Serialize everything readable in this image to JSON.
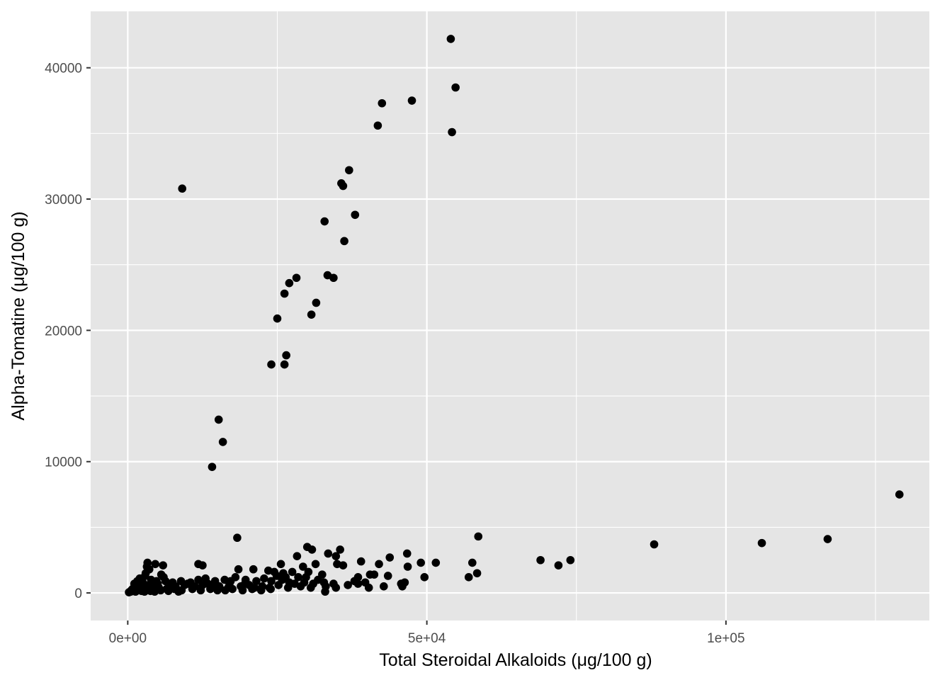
{
  "chart_data": {
    "type": "scatter",
    "title": "",
    "xlabel": "Total Steroidal Alkaloids (μg/100 g)",
    "ylabel": "Alpha-Tomatine (μg/100 g)",
    "xlim": [
      -6200,
      134000
    ],
    "ylim": [
      -2100,
      44300
    ],
    "x_ticks": [
      0,
      50000,
      100000
    ],
    "x_tick_labels": [
      "0e+00",
      "5e+04",
      "1e+05"
    ],
    "y_ticks": [
      0,
      10000,
      20000,
      30000,
      40000
    ],
    "y_tick_labels": [
      "0",
      "10000",
      "20000",
      "30000",
      "40000"
    ],
    "grid": true,
    "colors": {
      "panel": "#e5e5e5",
      "grid": "#ffffff",
      "point": "#000000"
    },
    "series": [
      {
        "name": "",
        "points": [
          [
            54000,
            42200
          ],
          [
            54800,
            38500
          ],
          [
            47500,
            37500
          ],
          [
            42500,
            37300
          ],
          [
            41800,
            35600
          ],
          [
            54200,
            35100
          ],
          [
            37000,
            32200
          ],
          [
            35700,
            31200
          ],
          [
            36000,
            31000
          ],
          [
            9100,
            30800
          ],
          [
            38000,
            28800
          ],
          [
            32900,
            28300
          ],
          [
            36200,
            26800
          ],
          [
            33400,
            24200
          ],
          [
            34400,
            24000
          ],
          [
            28200,
            24000
          ],
          [
            27000,
            23600
          ],
          [
            26200,
            22800
          ],
          [
            31500,
            22100
          ],
          [
            30700,
            21200
          ],
          [
            25000,
            20900
          ],
          [
            26500,
            18100
          ],
          [
            24000,
            17400
          ],
          [
            26200,
            17400
          ],
          [
            15200,
            13200
          ],
          [
            15900,
            11500
          ],
          [
            14100,
            9600
          ],
          [
            129000,
            7500
          ],
          [
            18300,
            4200
          ],
          [
            58600,
            4300
          ],
          [
            117000,
            4100
          ],
          [
            106000,
            3800
          ],
          [
            88000,
            3700
          ],
          [
            30000,
            3500
          ],
          [
            30800,
            3300
          ],
          [
            35500,
            3300
          ],
          [
            33500,
            3000
          ],
          [
            46700,
            3000
          ],
          [
            34800,
            2800
          ],
          [
            28300,
            2800
          ],
          [
            43800,
            2700
          ],
          [
            69000,
            2500
          ],
          [
            74000,
            2500
          ],
          [
            72000,
            2100
          ],
          [
            51500,
            2300
          ],
          [
            57600,
            2300
          ],
          [
            49000,
            2300
          ],
          [
            39000,
            2400
          ],
          [
            11800,
            2200
          ],
          [
            12500,
            2100
          ],
          [
            3300,
            2300
          ],
          [
            4600,
            2200
          ],
          [
            5900,
            2100
          ],
          [
            25600,
            2200
          ],
          [
            29300,
            2000
          ],
          [
            31400,
            2200
          ],
          [
            35000,
            2200
          ],
          [
            36000,
            2100
          ],
          [
            42000,
            2200
          ],
          [
            46800,
            2000
          ],
          [
            18500,
            1800
          ],
          [
            21000,
            1800
          ],
          [
            23500,
            1700
          ],
          [
            24500,
            1600
          ],
          [
            26000,
            1500
          ],
          [
            27500,
            1600
          ],
          [
            30200,
            1600
          ],
          [
            32500,
            1400
          ],
          [
            38500,
            1200
          ],
          [
            40500,
            1400
          ],
          [
            43500,
            1300
          ],
          [
            49600,
            1200
          ],
          [
            58400,
            1500
          ],
          [
            57000,
            1200
          ],
          [
            41200,
            1400
          ],
          [
            3000,
            1500
          ],
          [
            3600,
            1800
          ],
          [
            3200,
            2000
          ],
          [
            5600,
            1400
          ],
          [
            6000,
            1200
          ],
          [
            8900,
            900
          ],
          [
            10500,
            800
          ],
          [
            11800,
            1000
          ],
          [
            13000,
            1100
          ],
          [
            14600,
            900
          ],
          [
            16200,
            1000
          ],
          [
            17200,
            900
          ],
          [
            18000,
            1200
          ],
          [
            19700,
            1000
          ],
          [
            21500,
            900
          ],
          [
            22800,
            1100
          ],
          [
            24000,
            900
          ],
          [
            25800,
            1000
          ],
          [
            27000,
            800
          ],
          [
            28500,
            1200
          ],
          [
            29500,
            800
          ],
          [
            31000,
            700
          ],
          [
            32800,
            800
          ],
          [
            34400,
            700
          ],
          [
            37900,
            900
          ],
          [
            38500,
            700
          ],
          [
            39700,
            800
          ],
          [
            40300,
            400
          ],
          [
            42800,
            500
          ],
          [
            45900,
            500
          ],
          [
            46300,
            800
          ],
          [
            45700,
            700
          ],
          [
            34800,
            400
          ],
          [
            33000,
            100
          ],
          [
            2000,
            1100
          ],
          [
            2500,
            800
          ],
          [
            4000,
            600
          ],
          [
            4800,
            900
          ],
          [
            7200,
            700
          ],
          [
            8000,
            500
          ],
          [
            9500,
            600
          ],
          [
            12500,
            600
          ],
          [
            15300,
            500
          ],
          [
            16800,
            400
          ],
          [
            18900,
            500
          ],
          [
            20300,
            600
          ],
          [
            22500,
            500
          ],
          [
            23900,
            300
          ],
          [
            25200,
            600
          ],
          [
            26800,
            400
          ],
          [
            28900,
            500
          ],
          [
            30600,
            400
          ],
          [
            400,
            100
          ],
          [
            600,
            200
          ],
          [
            800,
            300
          ],
          [
            1000,
            200
          ],
          [
            1200,
            400
          ],
          [
            1500,
            300
          ],
          [
            1800,
            500
          ],
          [
            2100,
            300
          ],
          [
            2600,
            400
          ],
          [
            3100,
            200
          ],
          [
            3500,
            600
          ],
          [
            4200,
            300
          ],
          [
            5200,
            400
          ],
          [
            6500,
            300
          ],
          [
            7800,
            300
          ],
          [
            9000,
            200
          ],
          [
            10800,
            300
          ],
          [
            12200,
            200
          ],
          [
            13800,
            300
          ],
          [
            15000,
            200
          ],
          [
            16300,
            200
          ],
          [
            17500,
            300
          ],
          [
            19200,
            200
          ],
          [
            20800,
            300
          ],
          [
            22300,
            200
          ],
          [
            23700,
            400
          ],
          [
            200,
            50
          ],
          [
            500,
            100
          ],
          [
            900,
            150
          ],
          [
            1300,
            100
          ],
          [
            1700,
            200
          ],
          [
            2300,
            150
          ],
          [
            2800,
            100
          ],
          [
            3800,
            150
          ],
          [
            4500,
            100
          ],
          [
            5500,
            200
          ],
          [
            6800,
            150
          ],
          [
            8500,
            100
          ],
          [
            1100,
            700
          ],
          [
            1600,
            900
          ],
          [
            2200,
            600
          ],
          [
            2900,
            1300
          ],
          [
            3900,
            1000
          ],
          [
            5000,
            700
          ],
          [
            6300,
            900
          ],
          [
            7500,
            800
          ],
          [
            10000,
            700
          ],
          [
            11200,
            500
          ],
          [
            13400,
            700
          ],
          [
            14200,
            600
          ],
          [
            17000,
            700
          ],
          [
            19600,
            700
          ],
          [
            21200,
            400
          ],
          [
            24900,
            1300
          ],
          [
            26400,
            1200
          ],
          [
            27900,
            700
          ],
          [
            29800,
            1200
          ],
          [
            31800,
            1000
          ],
          [
            33100,
            500
          ],
          [
            36800,
            600
          ]
        ]
      }
    ]
  }
}
